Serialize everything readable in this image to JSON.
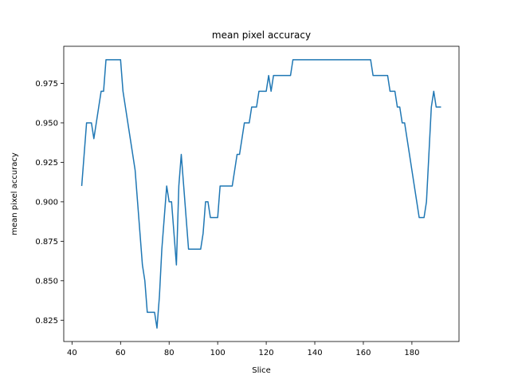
{
  "chart_data": {
    "type": "line",
    "title": "mean pixel accuracy",
    "xlabel": "Slice",
    "ylabel": "mean pixel accuracy",
    "xlim": [
      36.6,
      199.4
    ],
    "ylim": [
      0.8115,
      0.9985
    ],
    "xticks": [
      40,
      60,
      80,
      100,
      120,
      140,
      160,
      180
    ],
    "yticks": [
      0.825,
      0.85,
      0.875,
      0.9,
      0.925,
      0.95,
      0.975
    ],
    "ytick_labels": [
      "0.825",
      "0.850",
      "0.875",
      "0.900",
      "0.925",
      "0.950",
      "0.975"
    ],
    "grid": false,
    "line_color": "#1f77b4",
    "series": [
      {
        "x": [
          44,
          45,
          46,
          47,
          48,
          49,
          50,
          51,
          52,
          53,
          54,
          55,
          56,
          57,
          58,
          59,
          60,
          61,
          62,
          63,
          64,
          65,
          66,
          67,
          68,
          69,
          70,
          71,
          72,
          73,
          74,
          75,
          76,
          77,
          78,
          79,
          80,
          81,
          82,
          83,
          84,
          85,
          86,
          87,
          88,
          89,
          90,
          91,
          92,
          93,
          94,
          95,
          96,
          97,
          98,
          99,
          100,
          101,
          102,
          103,
          104,
          105,
          106,
          107,
          108,
          109,
          110,
          111,
          112,
          113,
          114,
          115,
          116,
          117,
          118,
          119,
          120,
          121,
          122,
          123,
          124,
          125,
          126,
          127,
          128,
          129,
          130,
          131,
          132,
          133,
          134,
          135,
          136,
          137,
          138,
          139,
          140,
          141,
          142,
          143,
          144,
          145,
          146,
          147,
          148,
          149,
          150,
          151,
          152,
          153,
          154,
          155,
          156,
          157,
          158,
          159,
          160,
          161,
          162,
          163,
          164,
          165,
          166,
          167,
          168,
          169,
          170,
          171,
          172,
          173,
          174,
          175,
          176,
          177,
          178,
          179,
          180,
          181,
          182,
          183,
          184,
          185,
          186,
          187,
          188,
          189,
          190,
          191,
          192
        ],
        "y": [
          0.91,
          0.93,
          0.95,
          0.95,
          0.95,
          0.94,
          0.95,
          0.96,
          0.97,
          0.97,
          0.99,
          0.99,
          0.99,
          0.99,
          0.99,
          0.99,
          0.99,
          0.97,
          0.96,
          0.95,
          0.94,
          0.93,
          0.92,
          0.9,
          0.88,
          0.86,
          0.85,
          0.83,
          0.83,
          0.83,
          0.83,
          0.82,
          0.84,
          0.87,
          0.89,
          0.91,
          0.9,
          0.9,
          0.88,
          0.86,
          0.91,
          0.93,
          0.91,
          0.89,
          0.87,
          0.87,
          0.87,
          0.87,
          0.87,
          0.87,
          0.88,
          0.9,
          0.9,
          0.89,
          0.89,
          0.89,
          0.89,
          0.91,
          0.91,
          0.91,
          0.91,
          0.91,
          0.91,
          0.92,
          0.93,
          0.93,
          0.94,
          0.95,
          0.95,
          0.95,
          0.96,
          0.96,
          0.96,
          0.97,
          0.97,
          0.97,
          0.97,
          0.98,
          0.97,
          0.98,
          0.98,
          0.98,
          0.98,
          0.98,
          0.98,
          0.98,
          0.98,
          0.99,
          0.99,
          0.99,
          0.99,
          0.99,
          0.99,
          0.99,
          0.99,
          0.99,
          0.99,
          0.99,
          0.99,
          0.99,
          0.99,
          0.99,
          0.99,
          0.99,
          0.99,
          0.99,
          0.99,
          0.99,
          0.99,
          0.99,
          0.99,
          0.99,
          0.99,
          0.99,
          0.99,
          0.99,
          0.99,
          0.99,
          0.99,
          0.99,
          0.98,
          0.98,
          0.98,
          0.98,
          0.98,
          0.98,
          0.98,
          0.97,
          0.97,
          0.97,
          0.96,
          0.96,
          0.95,
          0.95,
          0.94,
          0.93,
          0.92,
          0.91,
          0.9,
          0.89,
          0.89,
          0.89,
          0.9,
          0.93,
          0.96,
          0.97,
          0.96,
          0.96,
          0.96
        ]
      }
    ]
  }
}
